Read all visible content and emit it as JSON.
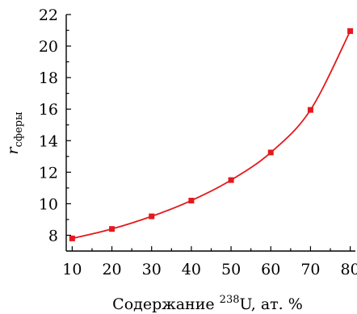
{
  "chart_data": {
    "type": "line",
    "x": [
      10,
      20,
      30,
      40,
      50,
      60,
      70,
      80
    ],
    "series": [
      {
        "values": [
          7.8,
          8.4,
          9.2,
          10.2,
          11.5,
          13.25,
          15.95,
          20.95
        ]
      }
    ],
    "xlabel": {
      "prefix": "Содержание ",
      "sup": "238",
      "suffix": "U, ат. %"
    },
    "ylabel": {
      "main": "r",
      "sub": "сферы"
    },
    "xlim": [
      10,
      80
    ],
    "ylim": [
      7,
      22
    ],
    "xticks": [
      10,
      20,
      30,
      40,
      50,
      60,
      70,
      80
    ],
    "yticks": [
      8,
      10,
      12,
      14,
      16,
      18,
      20,
      22
    ],
    "grid": false,
    "line_color": "#e31a1c",
    "marker": "square"
  }
}
